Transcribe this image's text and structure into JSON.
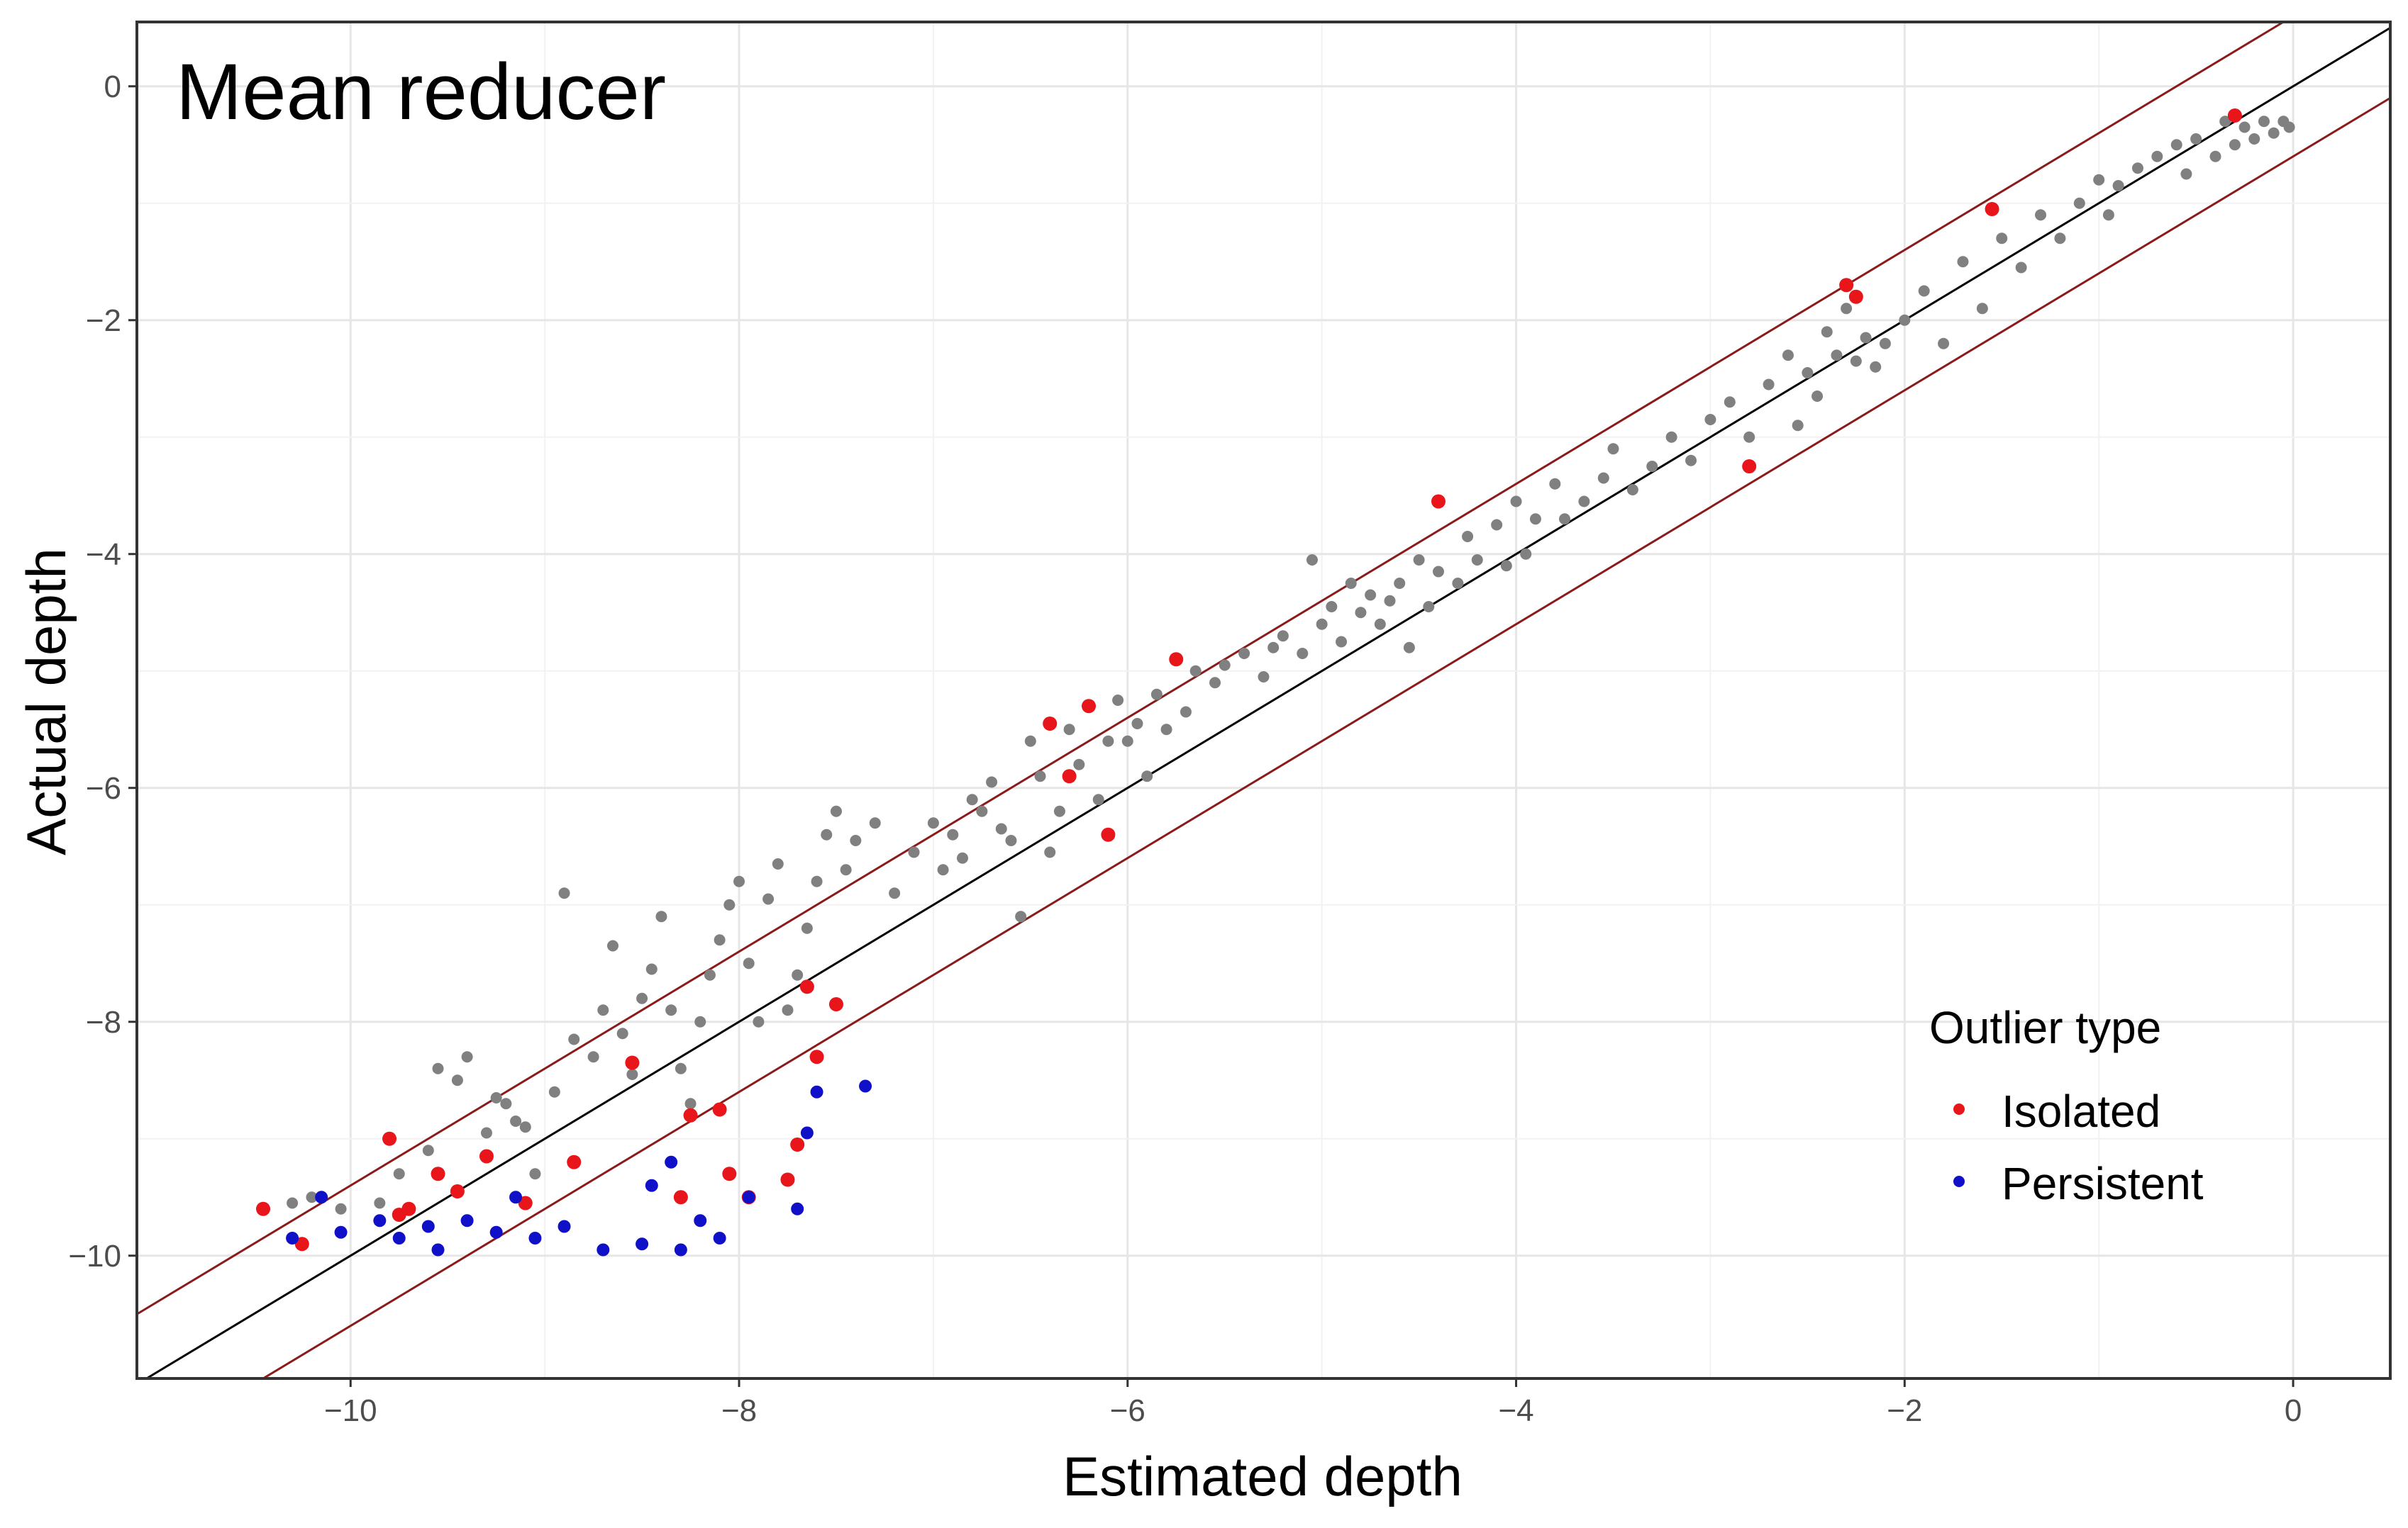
{
  "chart_data": {
    "type": "scatter",
    "title": "Mean reducer",
    "xlabel": "Estimated depth",
    "ylabel": "Actual depth",
    "xlim": [
      -11.1,
      0.5
    ],
    "ylim": [
      -11.05,
      0.55
    ],
    "x_ticks": [
      -10,
      -8,
      -6,
      -4,
      -2,
      0
    ],
    "y_ticks": [
      0,
      -2,
      -4,
      -6,
      -8,
      -10
    ],
    "x_tick_labels": [
      "−10",
      "−8",
      "−6",
      "−4",
      "−2",
      "0"
    ],
    "y_tick_labels": [
      "0",
      "−2",
      "−4",
      "−6",
      "−8",
      "−10"
    ],
    "grid": true,
    "legend": {
      "title": "Outlier type",
      "placement": "bottom-right",
      "entries": [
        {
          "label": "Isolated",
          "color": "#e8151b"
        },
        {
          "label": "Persistent",
          "color": "#1010c8"
        }
      ]
    },
    "colors": {
      "regular": "#808080",
      "isolated": "#e8151b",
      "persistent": "#1010c8",
      "identity_line": "#000000",
      "band_lines": "#8b1a1a"
    },
    "reference_lines": [
      {
        "kind": "identity",
        "slope": 1,
        "intercept": 0
      },
      {
        "kind": "upper band",
        "slope": 1,
        "intercept": 0.6
      },
      {
        "kind": "lower band",
        "slope": 1,
        "intercept": -0.6
      }
    ],
    "series": [
      {
        "group": "regular",
        "points": [
          [
            -10.3,
            -9.55
          ],
          [
            -10.2,
            -9.5
          ],
          [
            -10.05,
            -9.6
          ],
          [
            -9.85,
            -9.55
          ],
          [
            -9.75,
            -9.3
          ],
          [
            -9.6,
            -9.1
          ],
          [
            -9.55,
            -8.4
          ],
          [
            -9.45,
            -8.5
          ],
          [
            -9.4,
            -8.3
          ],
          [
            -9.3,
            -8.95
          ],
          [
            -9.25,
            -8.65
          ],
          [
            -9.2,
            -8.7
          ],
          [
            -9.15,
            -8.85
          ],
          [
            -9.1,
            -8.9
          ],
          [
            -9.05,
            -9.3
          ],
          [
            -8.95,
            -8.6
          ],
          [
            -8.9,
            -6.9
          ],
          [
            -8.85,
            -8.15
          ],
          [
            -8.75,
            -8.3
          ],
          [
            -8.7,
            -7.9
          ],
          [
            -8.65,
            -7.35
          ],
          [
            -8.6,
            -8.1
          ],
          [
            -8.55,
            -8.45
          ],
          [
            -8.5,
            -7.8
          ],
          [
            -8.45,
            -7.55
          ],
          [
            -8.4,
            -7.1
          ],
          [
            -8.35,
            -7.9
          ],
          [
            -8.3,
            -8.4
          ],
          [
            -8.25,
            -8.7
          ],
          [
            -8.2,
            -8.0
          ],
          [
            -8.15,
            -7.6
          ],
          [
            -8.1,
            -7.3
          ],
          [
            -8.05,
            -7.0
          ],
          [
            -8.0,
            -6.8
          ],
          [
            -7.95,
            -7.5
          ],
          [
            -7.9,
            -8.0
          ],
          [
            -7.85,
            -6.95
          ],
          [
            -7.8,
            -6.65
          ],
          [
            -7.75,
            -7.9
          ],
          [
            -7.7,
            -7.6
          ],
          [
            -7.65,
            -7.2
          ],
          [
            -7.6,
            -6.8
          ],
          [
            -7.55,
            -6.4
          ],
          [
            -7.5,
            -6.2
          ],
          [
            -7.45,
            -6.7
          ],
          [
            -7.4,
            -6.45
          ],
          [
            -7.3,
            -6.3
          ],
          [
            -7.2,
            -6.9
          ],
          [
            -7.1,
            -6.55
          ],
          [
            -7.0,
            -6.3
          ],
          [
            -6.95,
            -6.7
          ],
          [
            -6.9,
            -6.4
          ],
          [
            -6.85,
            -6.6
          ],
          [
            -6.8,
            -6.1
          ],
          [
            -6.75,
            -6.2
          ],
          [
            -6.7,
            -5.95
          ],
          [
            -6.65,
            -6.35
          ],
          [
            -6.6,
            -6.45
          ],
          [
            -6.55,
            -7.1
          ],
          [
            -6.5,
            -5.6
          ],
          [
            -6.45,
            -5.9
          ],
          [
            -6.4,
            -6.55
          ],
          [
            -6.35,
            -6.2
          ],
          [
            -6.3,
            -5.5
          ],
          [
            -6.25,
            -5.8
          ],
          [
            -6.2,
            -5.3
          ],
          [
            -6.15,
            -6.1
          ],
          [
            -6.1,
            -5.6
          ],
          [
            -6.05,
            -5.25
          ],
          [
            -6.0,
            -5.6
          ],
          [
            -5.95,
            -5.45
          ],
          [
            -5.9,
            -5.9
          ],
          [
            -5.85,
            -5.2
          ],
          [
            -5.8,
            -5.5
          ],
          [
            -5.7,
            -5.35
          ],
          [
            -5.65,
            -5.0
          ],
          [
            -5.55,
            -5.1
          ],
          [
            -5.5,
            -4.95
          ],
          [
            -5.4,
            -4.85
          ],
          [
            -5.3,
            -5.05
          ],
          [
            -5.25,
            -4.8
          ],
          [
            -5.2,
            -4.7
          ],
          [
            -5.1,
            -4.85
          ],
          [
            -5.05,
            -4.05
          ],
          [
            -5.0,
            -4.6
          ],
          [
            -4.95,
            -4.45
          ],
          [
            -4.9,
            -4.75
          ],
          [
            -4.85,
            -4.25
          ],
          [
            -4.8,
            -4.5
          ],
          [
            -4.75,
            -4.35
          ],
          [
            -4.7,
            -4.6
          ],
          [
            -4.65,
            -4.4
          ],
          [
            -4.6,
            -4.25
          ],
          [
            -4.55,
            -4.8
          ],
          [
            -4.5,
            -4.05
          ],
          [
            -4.45,
            -4.45
          ],
          [
            -4.4,
            -4.15
          ],
          [
            -4.3,
            -4.25
          ],
          [
            -4.25,
            -3.85
          ],
          [
            -4.2,
            -4.05
          ],
          [
            -4.1,
            -3.75
          ],
          [
            -4.05,
            -4.1
          ],
          [
            -4.0,
            -3.55
          ],
          [
            -3.95,
            -4.0
          ],
          [
            -3.9,
            -3.7
          ],
          [
            -3.8,
            -3.4
          ],
          [
            -3.75,
            -3.7
          ],
          [
            -3.65,
            -3.55
          ],
          [
            -3.55,
            -3.35
          ],
          [
            -3.5,
            -3.1
          ],
          [
            -3.4,
            -3.45
          ],
          [
            -3.3,
            -3.25
          ],
          [
            -3.2,
            -3.0
          ],
          [
            -3.1,
            -3.2
          ],
          [
            -3.0,
            -2.85
          ],
          [
            -2.9,
            -2.7
          ],
          [
            -2.8,
            -3.0
          ],
          [
            -2.7,
            -2.55
          ],
          [
            -2.6,
            -2.3
          ],
          [
            -2.55,
            -2.9
          ],
          [
            -2.5,
            -2.45
          ],
          [
            -2.45,
            -2.65
          ],
          [
            -2.4,
            -2.1
          ],
          [
            -2.35,
            -2.3
          ],
          [
            -2.3,
            -1.9
          ],
          [
            -2.25,
            -2.35
          ],
          [
            -2.2,
            -2.15
          ],
          [
            -2.15,
            -2.4
          ],
          [
            -2.1,
            -2.2
          ],
          [
            -2.0,
            -2.0
          ],
          [
            -1.9,
            -1.75
          ],
          [
            -1.8,
            -2.2
          ],
          [
            -1.7,
            -1.5
          ],
          [
            -1.6,
            -1.9
          ],
          [
            -1.5,
            -1.3
          ],
          [
            -1.4,
            -1.55
          ],
          [
            -1.3,
            -1.1
          ],
          [
            -1.2,
            -1.3
          ],
          [
            -1.1,
            -1.0
          ],
          [
            -1.0,
            -0.8
          ],
          [
            -0.95,
            -1.1
          ],
          [
            -0.9,
            -0.85
          ],
          [
            -0.8,
            -0.7
          ],
          [
            -0.7,
            -0.6
          ],
          [
            -0.6,
            -0.5
          ],
          [
            -0.55,
            -0.75
          ],
          [
            -0.5,
            -0.45
          ],
          [
            -0.4,
            -0.6
          ],
          [
            -0.35,
            -0.3
          ],
          [
            -0.3,
            -0.5
          ],
          [
            -0.25,
            -0.35
          ],
          [
            -0.2,
            -0.45
          ],
          [
            -0.15,
            -0.3
          ],
          [
            -0.1,
            -0.4
          ],
          [
            -0.05,
            -0.3
          ],
          [
            -0.02,
            -0.35
          ]
        ]
      },
      {
        "group": "isolated",
        "points": [
          [
            -10.45,
            -9.6
          ],
          [
            -10.25,
            -9.9
          ],
          [
            -9.8,
            -9.0
          ],
          [
            -9.75,
            -9.65
          ],
          [
            -9.7,
            -9.6
          ],
          [
            -9.55,
            -9.3
          ],
          [
            -9.45,
            -9.45
          ],
          [
            -9.3,
            -9.15
          ],
          [
            -9.1,
            -9.55
          ],
          [
            -8.85,
            -9.2
          ],
          [
            -8.55,
            -8.35
          ],
          [
            -8.3,
            -9.5
          ],
          [
            -8.25,
            -8.8
          ],
          [
            -8.1,
            -8.75
          ],
          [
            -8.05,
            -9.3
          ],
          [
            -7.95,
            -9.5
          ],
          [
            -7.75,
            -9.35
          ],
          [
            -7.7,
            -9.05
          ],
          [
            -7.65,
            -7.7
          ],
          [
            -7.6,
            -8.3
          ],
          [
            -7.5,
            -7.85
          ],
          [
            -6.4,
            -5.45
          ],
          [
            -6.3,
            -5.9
          ],
          [
            -6.2,
            -5.3
          ],
          [
            -6.1,
            -6.4
          ],
          [
            -5.75,
            -4.9
          ],
          [
            -4.4,
            -3.55
          ],
          [
            -2.8,
            -3.25
          ],
          [
            -2.3,
            -1.7
          ],
          [
            -2.25,
            -1.8
          ],
          [
            -1.55,
            -1.05
          ],
          [
            -0.3,
            -0.25
          ]
        ]
      },
      {
        "group": "persistent",
        "points": [
          [
            -10.3,
            -9.85
          ],
          [
            -10.15,
            -9.5
          ],
          [
            -10.05,
            -9.8
          ],
          [
            -9.85,
            -9.7
          ],
          [
            -9.75,
            -9.85
          ],
          [
            -9.6,
            -9.75
          ],
          [
            -9.55,
            -9.95
          ],
          [
            -9.4,
            -9.7
          ],
          [
            -9.25,
            -9.8
          ],
          [
            -9.15,
            -9.5
          ],
          [
            -9.05,
            -9.85
          ],
          [
            -8.9,
            -9.75
          ],
          [
            -8.7,
            -9.95
          ],
          [
            -8.5,
            -9.9
          ],
          [
            -8.45,
            -9.4
          ],
          [
            -8.35,
            -9.2
          ],
          [
            -8.3,
            -9.95
          ],
          [
            -8.2,
            -9.7
          ],
          [
            -8.1,
            -9.85
          ],
          [
            -7.95,
            -9.5
          ],
          [
            -7.7,
            -9.6
          ],
          [
            -7.65,
            -8.95
          ],
          [
            -7.6,
            -8.6
          ],
          [
            -7.35,
            -8.55
          ]
        ]
      }
    ]
  }
}
